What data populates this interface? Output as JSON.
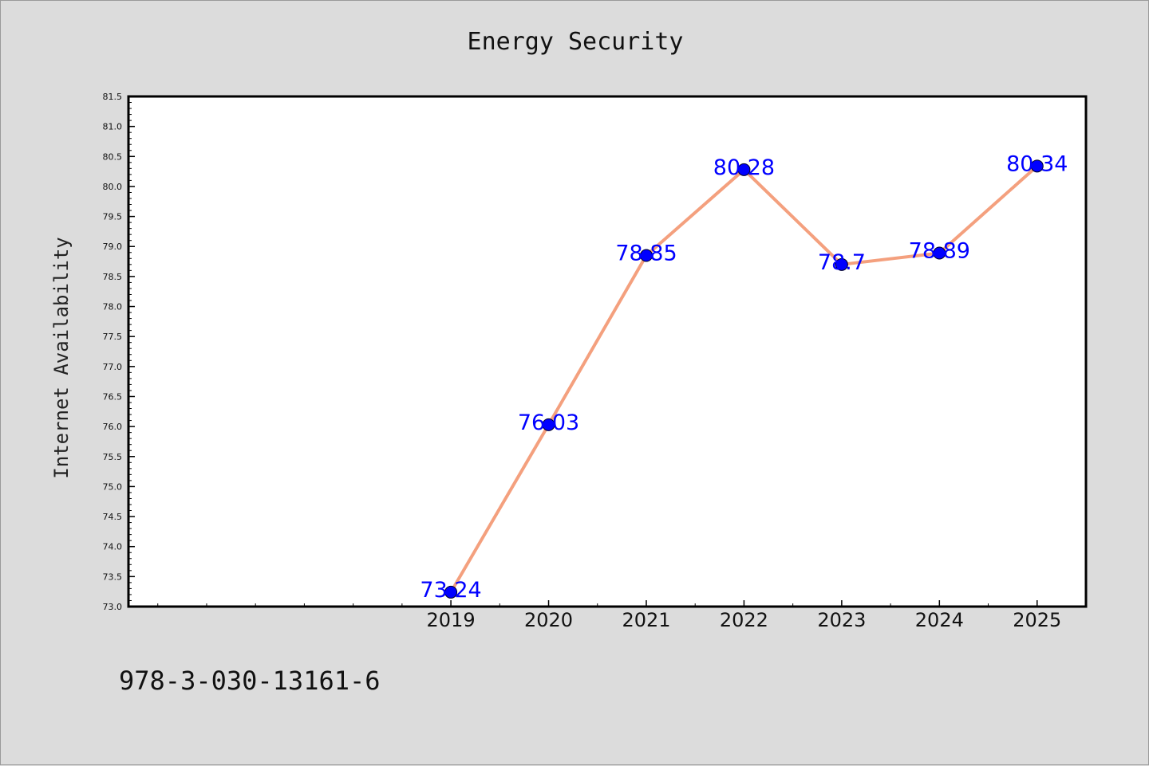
{
  "title": "Energy Security",
  "footer": {
    "isbn": "978-3-030-13161-6"
  },
  "colors": {
    "line": "#f4a07e",
    "marker": "#0000ff",
    "label": "#0000ff",
    "background": "#dcdcdc",
    "plot_bg": "#ffffff"
  },
  "chart_data": {
    "type": "line",
    "title": "Energy Security",
    "xlabel": "",
    "ylabel": "Internet Availability",
    "x": [
      2019,
      2020,
      2021,
      2022,
      2023,
      2024,
      2025
    ],
    "x_tick_labels": [
      "2019",
      "2020",
      "2021",
      "2022",
      "2023",
      "2024",
      "2025"
    ],
    "xlim": [
      2015.7,
      2025.5
    ],
    "values": [
      73.24,
      76.03,
      78.85,
      80.28,
      78.7,
      78.89,
      80.34
    ],
    "data_labels": [
      "73.24",
      "76.03",
      "78.85",
      "80.28",
      "78.7",
      "78.89",
      "80.34"
    ],
    "ylim": [
      73.0,
      81.5
    ],
    "y_ticks": [
      "73.0",
      "73.5",
      "74.0",
      "74.5",
      "75.0",
      "75.5",
      "76.0",
      "76.5",
      "77.0",
      "77.5",
      "78.0",
      "78.5",
      "79.0",
      "79.5",
      "80.0",
      "80.5",
      "81.0",
      "81.5"
    ],
    "grid": false,
    "legend": "none"
  }
}
